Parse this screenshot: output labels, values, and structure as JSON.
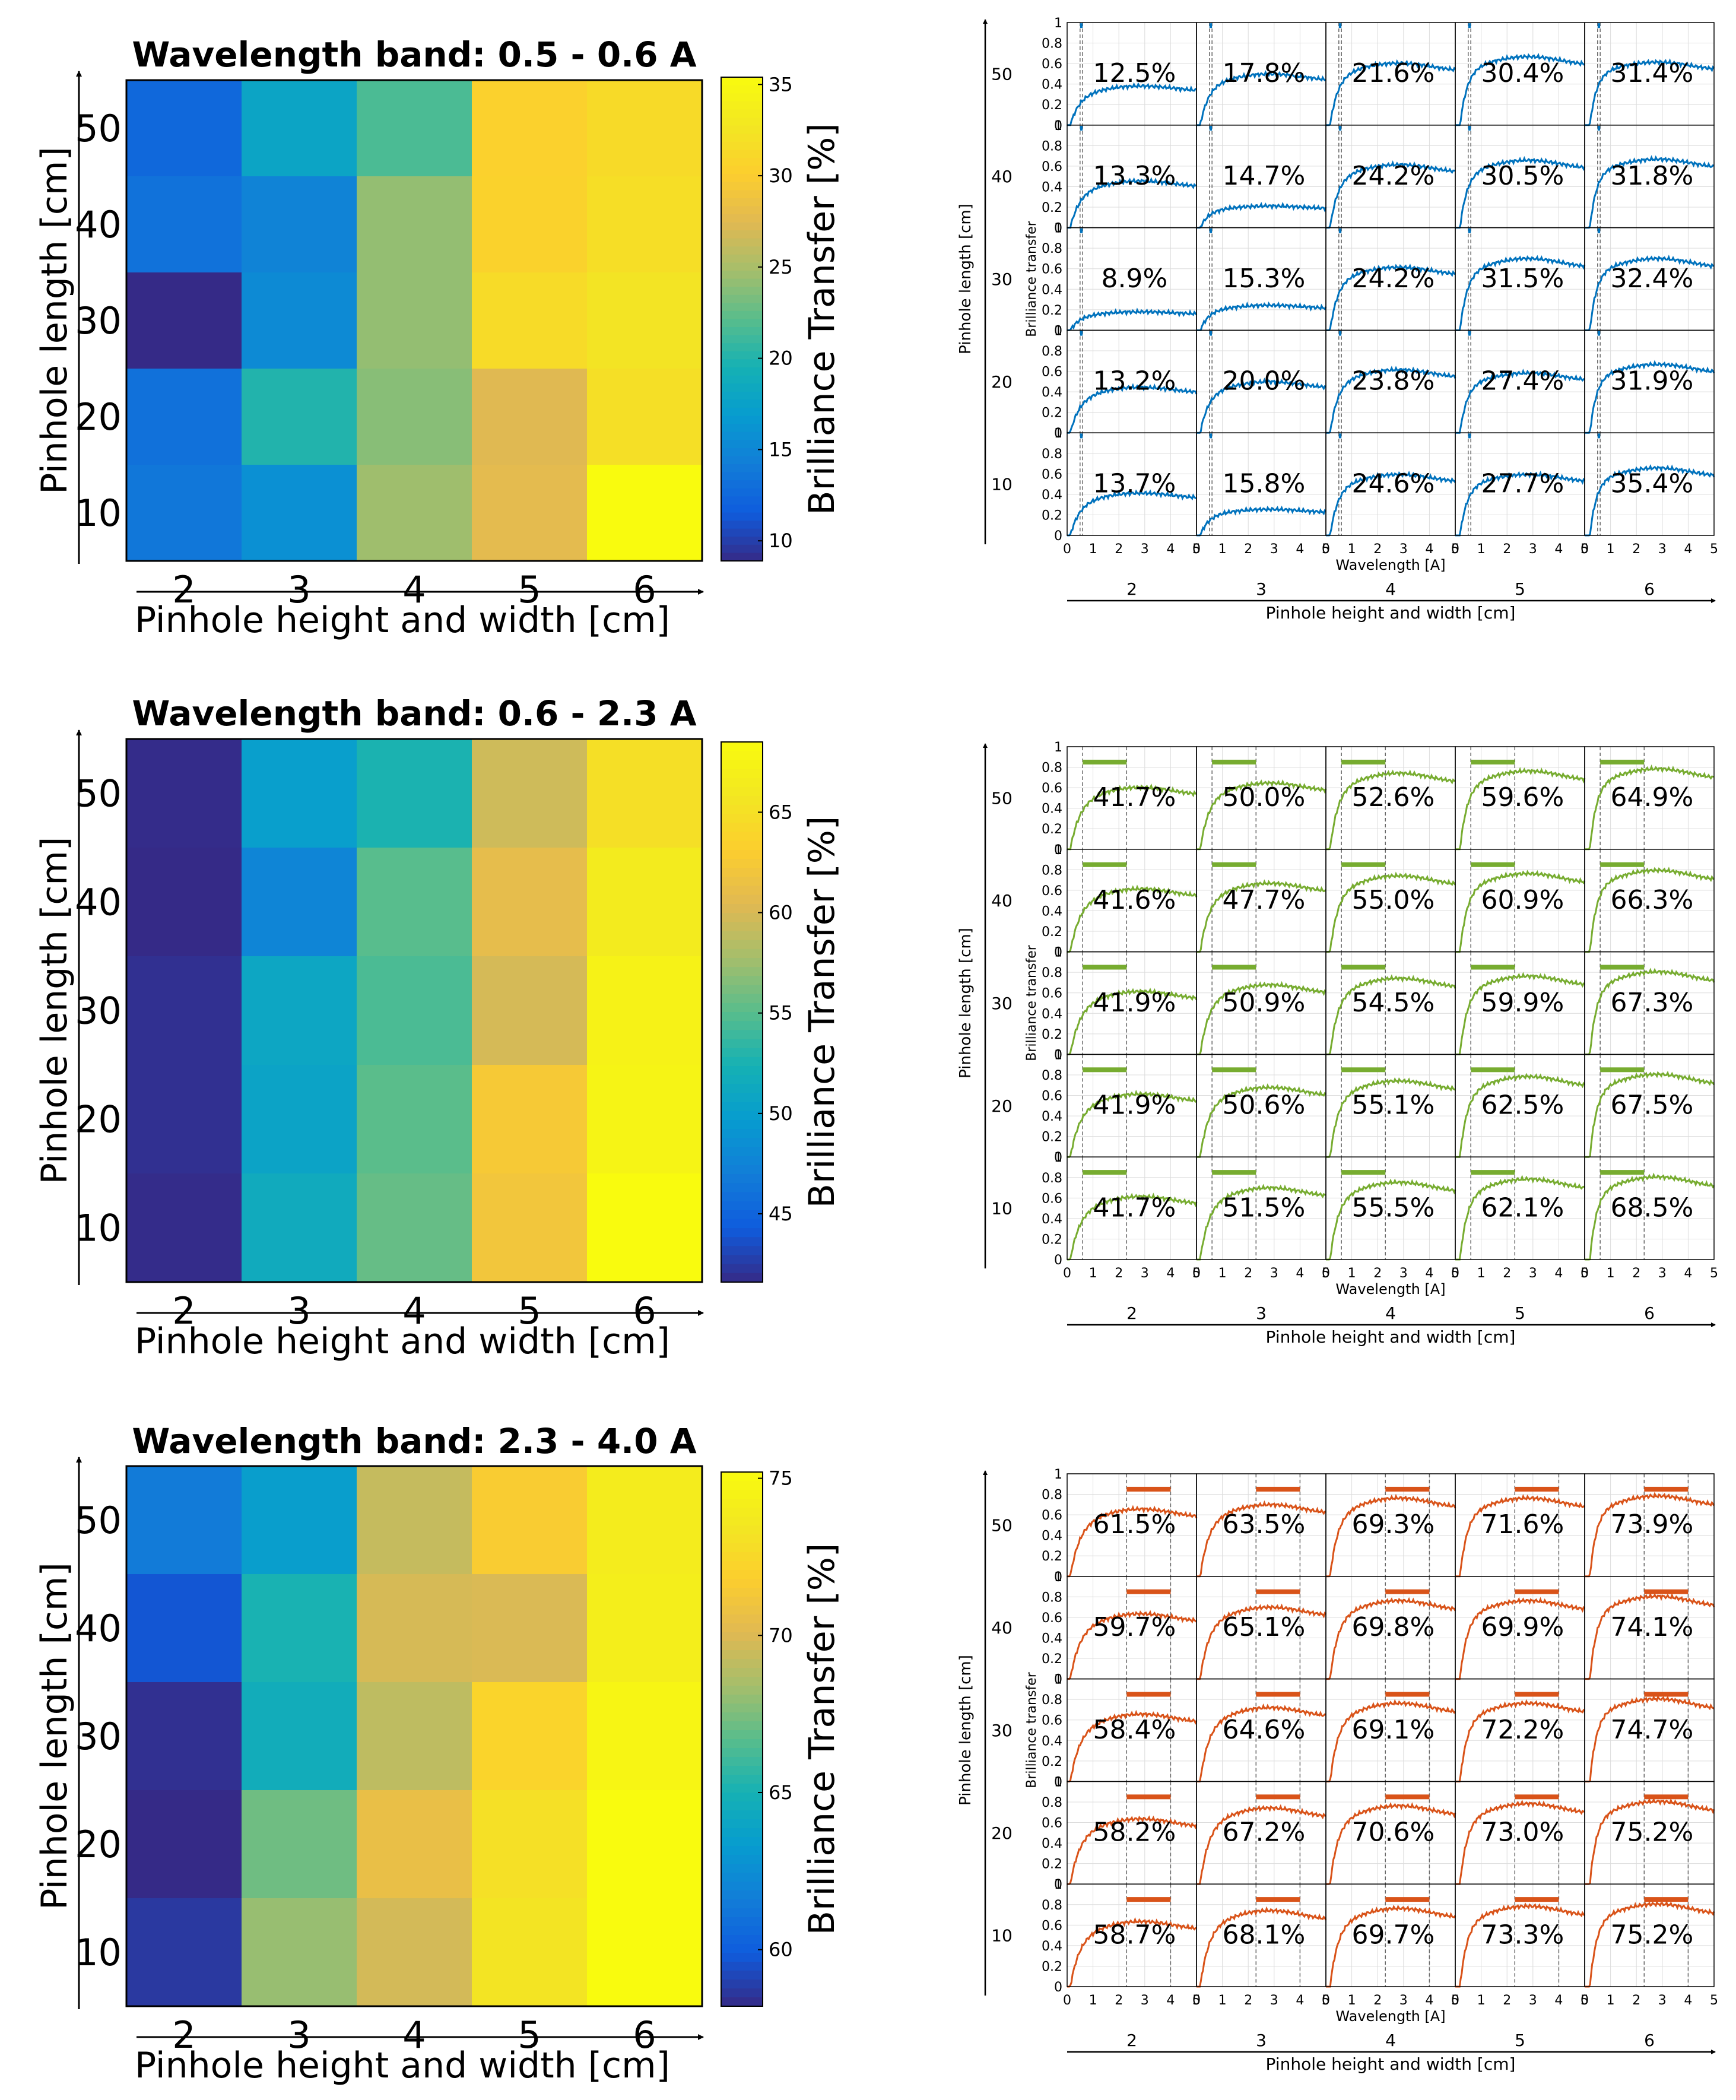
{
  "colors": {
    "band1_curve": "#0072bd",
    "band2_curve": "#77ac30",
    "band3_curve": "#d95319",
    "grid": "#dcdcdc",
    "axis": "#000000",
    "dashed": "#666666"
  },
  "chart_data": [
    {
      "type": "heatmap",
      "title": "Wavelength band: 0.5 - 0.6 A",
      "xlabel": "Pinhole height and width [cm]",
      "ylabel": "Pinhole length [cm]",
      "colorbar_label": "Brilliance Transfer [%]",
      "x_categories": [
        "2",
        "3",
        "4",
        "5",
        "6"
      ],
      "y_categories": [
        "50",
        "40",
        "30",
        "20",
        "10"
      ],
      "values": [
        [
          12.5,
          17.8,
          21.6,
          30.4,
          31.4
        ],
        [
          13.3,
          14.7,
          24.2,
          30.5,
          31.8
        ],
        [
          8.9,
          15.3,
          24.2,
          31.5,
          32.4
        ],
        [
          13.2,
          20.0,
          23.8,
          27.4,
          31.9
        ],
        [
          13.7,
          15.8,
          24.6,
          27.7,
          35.4
        ]
      ],
      "clim": [
        8.9,
        35.4
      ],
      "colorbar_ticks": [
        "10",
        "15",
        "20",
        "25",
        "30",
        "35"
      ],
      "colorbar_tick_values": [
        10,
        15,
        20,
        25,
        30,
        35
      ]
    },
    {
      "type": "heatmap",
      "title": "Wavelength band: 0.6 - 2.3 A",
      "xlabel": "Pinhole height and width [cm]",
      "ylabel": "Pinhole length [cm]",
      "colorbar_label": "Brilliance Transfer [%]",
      "x_categories": [
        "2",
        "3",
        "4",
        "5",
        "6"
      ],
      "y_categories": [
        "50",
        "40",
        "30",
        "20",
        "10"
      ],
      "values": [
        [
          41.7,
          50.0,
          52.6,
          59.6,
          64.9
        ],
        [
          41.6,
          47.7,
          55.0,
          60.9,
          66.3
        ],
        [
          41.9,
          50.9,
          54.5,
          59.9,
          67.3
        ],
        [
          41.9,
          50.6,
          55.1,
          62.5,
          67.5
        ],
        [
          41.7,
          51.5,
          55.5,
          62.1,
          68.5
        ]
      ],
      "clim": [
        41.6,
        68.5
      ],
      "colorbar_ticks": [
        "45",
        "50",
        "55",
        "60",
        "65"
      ],
      "colorbar_tick_values": [
        45,
        50,
        55,
        60,
        65
      ]
    },
    {
      "type": "heatmap",
      "title": "Wavelength band: 2.3 - 4.0 A",
      "xlabel": "Pinhole height and width [cm]",
      "ylabel": "Pinhole length [cm]",
      "colorbar_label": "Brilliance Transfer [%]",
      "x_categories": [
        "2",
        "3",
        "4",
        "5",
        "6"
      ],
      "y_categories": [
        "50",
        "40",
        "30",
        "20",
        "10"
      ],
      "values": [
        [
          61.5,
          63.5,
          69.3,
          71.6,
          73.9
        ],
        [
          59.7,
          65.1,
          69.8,
          69.9,
          74.1
        ],
        [
          58.4,
          64.6,
          69.1,
          72.2,
          74.7
        ],
        [
          58.2,
          67.2,
          70.6,
          73.0,
          75.2
        ],
        [
          58.7,
          68.1,
          69.7,
          73.3,
          75.2
        ]
      ],
      "clim": [
        58.2,
        75.2
      ],
      "colorbar_ticks": [
        "60",
        "65",
        "70",
        "75"
      ],
      "colorbar_tick_values": [
        60,
        65,
        70,
        75
      ]
    },
    {
      "type": "line",
      "subtype": "small-multiples",
      "band": "0.5 - 0.6 A",
      "outer_xlabel": "Pinhole height and width [cm]",
      "outer_ylabel": "Pinhole length [cm]",
      "inner_xlabel": "Wavelength [A]",
      "inner_ylabel": "Brilliance transfer",
      "col_labels": [
        "2",
        "3",
        "4",
        "5",
        "6"
      ],
      "row_labels": [
        "50",
        "40",
        "30",
        "20",
        "10"
      ],
      "inner_x_ticks": [
        "0",
        "1",
        "2",
        "3",
        "4",
        "5"
      ],
      "inner_x_tick_values": [
        0,
        1,
        2,
        3,
        4,
        5
      ],
      "inner_y_ticks": [
        "0",
        "0.2",
        "0.4",
        "0.6",
        "0.8",
        "1"
      ],
      "inner_y_tick_values": [
        0,
        0.2,
        0.4,
        0.6,
        0.8,
        1
      ],
      "xlim": [
        0,
        5
      ],
      "ylim": [
        0,
        1
      ],
      "band_range": [
        0.5,
        0.6
      ],
      "band_marker_y": 0.97,
      "labels": [
        [
          "12.5%",
          "17.8%",
          "21.6%",
          "30.4%",
          "31.4%"
        ],
        [
          "13.3%",
          "14.7%",
          "24.2%",
          "30.5%",
          "31.8%"
        ],
        [
          "8.9%",
          "15.3%",
          "24.2%",
          "31.5%",
          "32.4%"
        ],
        [
          "13.2%",
          "20.0%",
          "23.8%",
          "27.4%",
          "31.9%"
        ],
        [
          "13.7%",
          "15.8%",
          "24.6%",
          "27.7%",
          "35.4%"
        ]
      ],
      "plateaus": [
        [
          0.36,
          0.47,
          0.57,
          0.63,
          0.58
        ],
        [
          0.43,
          0.2,
          0.58,
          0.62,
          0.63
        ],
        [
          0.17,
          0.23,
          0.58,
          0.66,
          0.66
        ],
        [
          0.42,
          0.47,
          0.58,
          0.55,
          0.63
        ],
        [
          0.39,
          0.24,
          0.56,
          0.56,
          0.62
        ]
      ]
    },
    {
      "type": "line",
      "subtype": "small-multiples",
      "band": "0.6 - 2.3 A",
      "outer_xlabel": "Pinhole height and width [cm]",
      "outer_ylabel": "Pinhole length [cm]",
      "inner_xlabel": "Wavelength [A]",
      "inner_ylabel": "Brilliance transfer",
      "col_labels": [
        "2",
        "3",
        "4",
        "5",
        "6"
      ],
      "row_labels": [
        "50",
        "40",
        "30",
        "20",
        "10"
      ],
      "inner_x_ticks": [
        "0",
        "1",
        "2",
        "3",
        "4",
        "5"
      ],
      "inner_x_tick_values": [
        0,
        1,
        2,
        3,
        4,
        5
      ],
      "inner_y_ticks": [
        "0",
        "0.2",
        "0.4",
        "0.6",
        "0.8",
        "1"
      ],
      "inner_y_tick_values": [
        0,
        0.2,
        0.4,
        0.6,
        0.8,
        1
      ],
      "xlim": [
        0,
        5
      ],
      "ylim": [
        0,
        1
      ],
      "band_range": [
        0.6,
        2.3
      ],
      "band_marker_y": 0.85,
      "labels": [
        [
          "41.7%",
          "50.0%",
          "52.6%",
          "59.6%",
          "64.9%"
        ],
        [
          "41.6%",
          "47.7%",
          "55.0%",
          "60.9%",
          "66.3%"
        ],
        [
          "41.9%",
          "50.9%",
          "54.5%",
          "59.9%",
          "67.3%"
        ],
        [
          "41.9%",
          "50.6%",
          "55.1%",
          "62.5%",
          "67.5%"
        ],
        [
          "41.7%",
          "51.5%",
          "55.5%",
          "62.1%",
          "68.5%"
        ]
      ],
      "plateaus": [
        [
          0.57,
          0.61,
          0.7,
          0.72,
          0.74
        ],
        [
          0.58,
          0.63,
          0.7,
          0.72,
          0.75
        ],
        [
          0.58,
          0.64,
          0.7,
          0.72,
          0.76
        ],
        [
          0.58,
          0.64,
          0.7,
          0.74,
          0.76
        ],
        [
          0.58,
          0.66,
          0.71,
          0.74,
          0.76
        ]
      ]
    },
    {
      "type": "line",
      "subtype": "small-multiples",
      "band": "2.3 - 4.0 A",
      "outer_xlabel": "Pinhole height and width [cm]",
      "outer_ylabel": "Pinhole length [cm]",
      "inner_xlabel": "Wavelength [A]",
      "inner_ylabel": "Brilliance transfer",
      "col_labels": [
        "2",
        "3",
        "4",
        "5",
        "6"
      ],
      "row_labels": [
        "50",
        "40",
        "30",
        "20",
        "10"
      ],
      "inner_x_ticks": [
        "0",
        "1",
        "2",
        "3",
        "4",
        "5"
      ],
      "inner_x_tick_values": [
        0,
        1,
        2,
        3,
        4,
        5
      ],
      "inner_y_ticks": [
        "0",
        "0.2",
        "0.4",
        "0.6",
        "0.8",
        "1"
      ],
      "inner_y_tick_values": [
        0,
        0.2,
        0.4,
        0.6,
        0.8,
        1
      ],
      "xlim": [
        0,
        5
      ],
      "ylim": [
        0,
        1
      ],
      "band_range": [
        2.3,
        4.0
      ],
      "band_marker_y": 0.85,
      "labels": [
        [
          "61.5%",
          "63.5%",
          "69.3%",
          "71.6%",
          "73.9%"
        ],
        [
          "59.7%",
          "65.1%",
          "69.8%",
          "69.9%",
          "74.1%"
        ],
        [
          "58.4%",
          "64.6%",
          "69.1%",
          "72.2%",
          "74.7%"
        ],
        [
          "58.2%",
          "67.2%",
          "70.6%",
          "73.0%",
          "75.2%"
        ],
        [
          "58.7%",
          "68.1%",
          "69.7%",
          "73.3%",
          "75.2%"
        ]
      ],
      "plateaus": [
        [
          0.62,
          0.66,
          0.72,
          0.72,
          0.74
        ],
        [
          0.6,
          0.66,
          0.72,
          0.72,
          0.76
        ],
        [
          0.62,
          0.68,
          0.72,
          0.72,
          0.76
        ],
        [
          0.6,
          0.7,
          0.72,
          0.74,
          0.76
        ],
        [
          0.6,
          0.7,
          0.72,
          0.74,
          0.76
        ]
      ]
    }
  ]
}
